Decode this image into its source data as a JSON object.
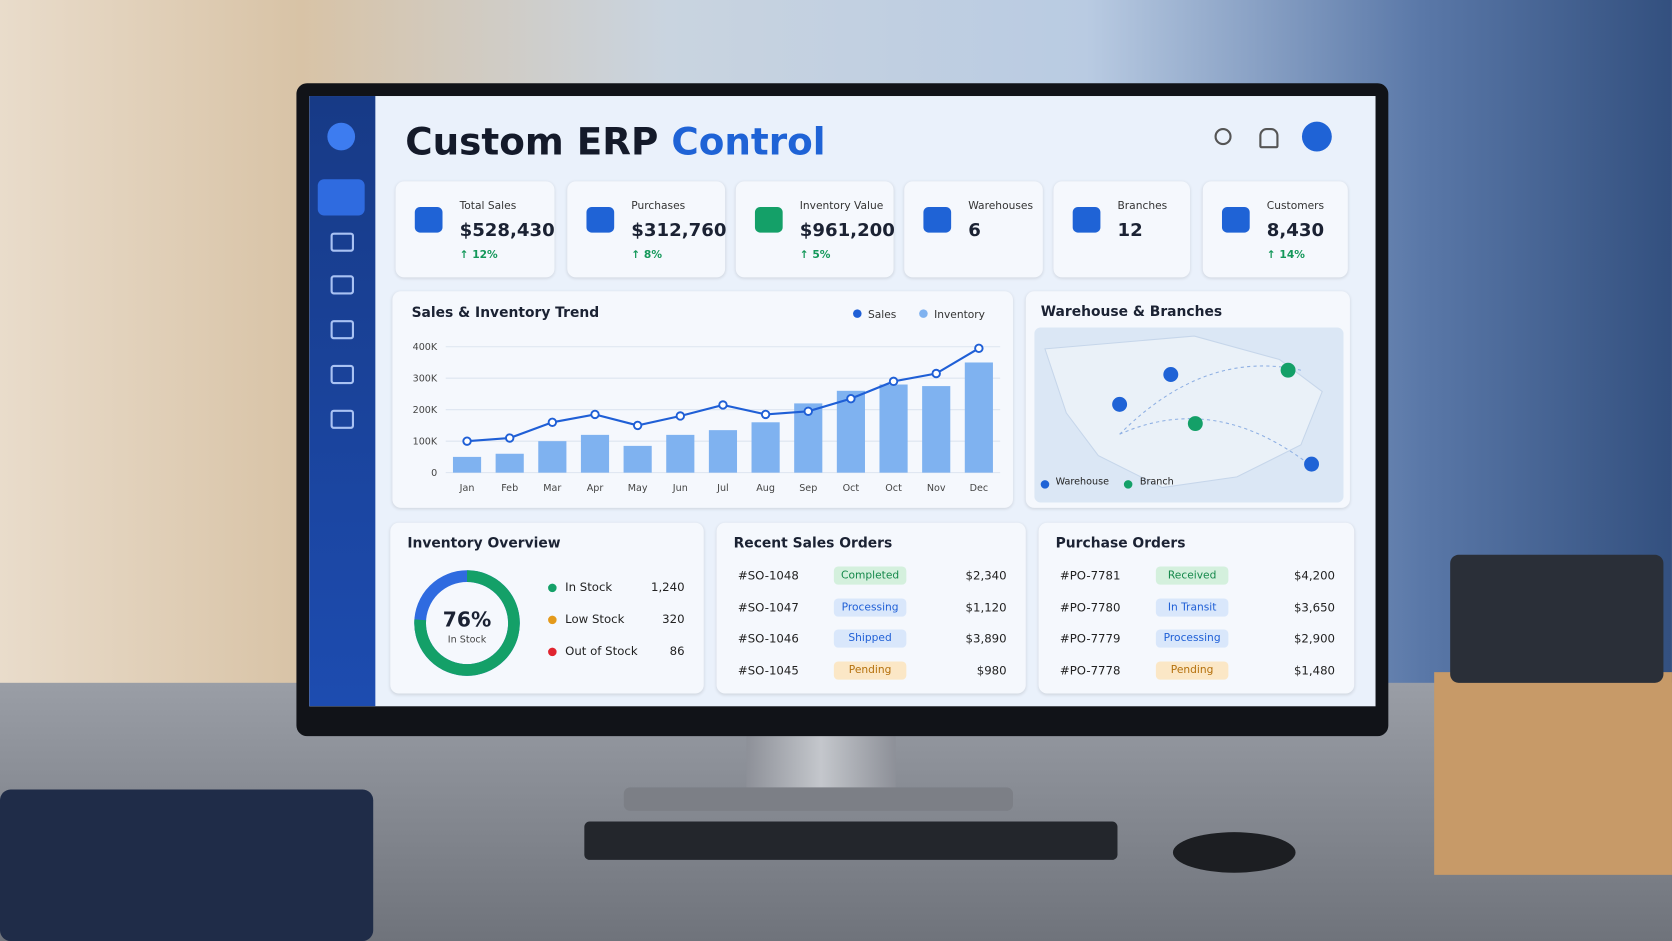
{
  "header": {
    "title_main": "Custom ERP",
    "title_accent": "Control"
  },
  "kpis": [
    {
      "label": "Total Sales",
      "value": "$528,430",
      "change": "↑ 12%"
    },
    {
      "label": "Purchases",
      "value": "$312,760",
      "change": "↑ 8%"
    },
    {
      "label": "Inventory Value",
      "value": "$961,200",
      "change": "↑ 5%"
    },
    {
      "label": "Warehouses",
      "value": "6"
    },
    {
      "label": "Branches",
      "value": "12"
    },
    {
      "label": "Customers",
      "value": "8,430",
      "change": "↑ 14%"
    }
  ],
  "chart_data": {
    "type": "combo",
    "title": "Sales & Inventory Trend",
    "categories": [
      "Jan",
      "Feb",
      "Mar",
      "Apr",
      "May",
      "Jun",
      "Jul",
      "Aug",
      "Sep",
      "Oct",
      "Oct",
      "Nov",
      "Dec"
    ],
    "series": [
      {
        "name": "Sales",
        "type": "line",
        "color": "#1f5fd6",
        "values": [
          100000,
          110000,
          160000,
          185000,
          150000,
          180000,
          215000,
          185000,
          195000,
          235000,
          290000,
          315000,
          395000
        ]
      },
      {
        "name": "Inventory",
        "type": "bar",
        "color": "#7fb2f0",
        "values": [
          50000,
          60000,
          100000,
          120000,
          85000,
          120000,
          135000,
          160000,
          220000,
          260000,
          280000,
          275000,
          350000
        ]
      }
    ],
    "ylim": [
      0,
      400000
    ],
    "yticks": [
      0,
      {
        "value": 100000,
        "label": "100K"
      },
      {
        "value": 200000,
        "label": "200K"
      },
      {
        "value": 300000,
        "label": "300K"
      },
      {
        "value": 400000,
        "label": "400K"
      }
    ],
    "grid": true,
    "legend": "top-right"
  },
  "map": {
    "title": "Warehouse & Branches",
    "legend": [
      "Warehouse",
      "Branch"
    ]
  },
  "inventory": {
    "title": "Inventory Overview",
    "gauge": {
      "value": 76,
      "value_label": "76%",
      "caption": "In Stock"
    },
    "rows": [
      [
        "In Stock",
        "1,240"
      ],
      [
        "Low Stock",
        "320"
      ],
      [
        "Out of Stock",
        "86"
      ]
    ]
  },
  "sales_orders": {
    "title": "Recent Sales Orders",
    "rows": [
      [
        "#SO-1048",
        "Completed",
        "$2,340"
      ],
      [
        "#SO-1047",
        "Processing",
        "$1,120"
      ],
      [
        "#SO-1046",
        "Shipped",
        "$3,890"
      ],
      [
        "#SO-1045",
        "Pending",
        "$980"
      ]
    ]
  },
  "purchase_orders": {
    "title": "Purchase Orders",
    "rows": [
      [
        "#PO-7781",
        "Received",
        "$4,200"
      ],
      [
        "#PO-7780",
        "In Transit",
        "$3,650"
      ],
      [
        "#PO-7779",
        "Processing",
        "$2,900"
      ],
      [
        "#PO-7778",
        "Pending",
        "$1,480"
      ]
    ]
  }
}
